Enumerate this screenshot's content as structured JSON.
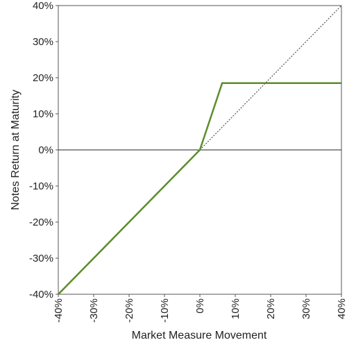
{
  "chart_data": {
    "type": "line",
    "xlabel": "Market Measure Movement",
    "ylabel": "Notes Return at Maturity",
    "xlim": [
      -40,
      40
    ],
    "ylim": [
      -40,
      40
    ],
    "x_tick_labels": [
      "-40%",
      "-30%",
      "-20%",
      "-10%",
      "0%",
      "10%",
      "20%",
      "30%",
      "40%"
    ],
    "y_tick_labels": [
      "40%",
      "30%",
      "20%",
      "10%",
      "0%",
      "-10%",
      "-20%",
      "-30%",
      "-40%"
    ],
    "x_ticks": [
      -40,
      -30,
      -20,
      -10,
      0,
      10,
      20,
      30,
      40
    ],
    "y_ticks": [
      40,
      30,
      20,
      10,
      0,
      -10,
      -20,
      -30,
      -40
    ],
    "grid": false,
    "zero_line": true,
    "series": [
      {
        "style": "solid",
        "color": "#5b8c2a",
        "x": [
          -40,
          0,
          6.3,
          40
        ],
        "y": [
          -40,
          0,
          18.5,
          18.5
        ]
      },
      {
        "style": "dotted",
        "color": "#333333",
        "x": [
          0,
          40
        ],
        "y": [
          0,
          40
        ]
      }
    ]
  }
}
